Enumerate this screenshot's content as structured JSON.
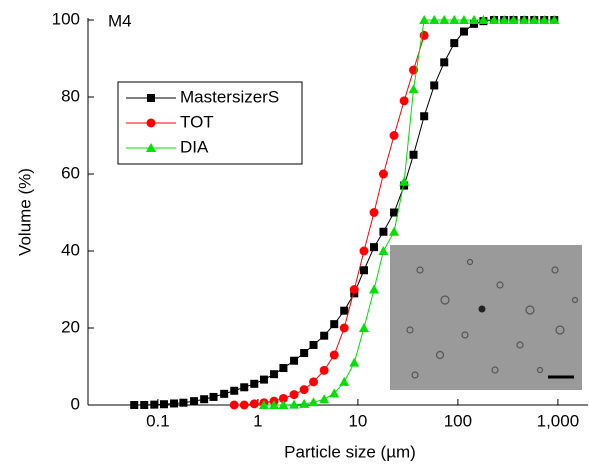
{
  "chart_data": {
    "type": "line",
    "annotation": "M4",
    "xlabel": "Particle size (µm)",
    "ylabel": "Volume (%)",
    "xscale": "log",
    "xlim": [
      0.02,
      2000
    ],
    "ylim": [
      0,
      100
    ],
    "xticks": [
      0.1,
      1,
      10,
      100,
      {
        "value": 1000,
        "label": "1,000"
      }
    ],
    "yticks": [
      0,
      20,
      40,
      60,
      80,
      100
    ],
    "legend": "upper left",
    "series": [
      {
        "name": "MastersizerS",
        "color": "#000000",
        "marker": "square",
        "x": [
          0.058,
          0.073,
          0.092,
          0.115,
          0.145,
          0.18,
          0.23,
          0.29,
          0.36,
          0.46,
          0.58,
          0.73,
          0.92,
          1.15,
          1.45,
          1.8,
          2.3,
          2.9,
          3.6,
          4.6,
          5.8,
          7.3,
          9.2,
          11.5,
          14.5,
          18,
          23,
          29,
          36,
          46,
          58,
          73,
          92,
          115,
          145,
          180,
          230,
          290,
          360,
          460,
          580,
          730,
          920
        ],
        "values": [
          0,
          0,
          0.1,
          0.2,
          0.4,
          0.6,
          1.0,
          1.5,
          2.1,
          2.9,
          3.7,
          4.6,
          5.5,
          6.6,
          8,
          9.6,
          11.5,
          13.5,
          15.6,
          18,
          21,
          24.5,
          29,
          35,
          41,
          45,
          50,
          57,
          65,
          75,
          83,
          89,
          94,
          97,
          99,
          99.7,
          100,
          100,
          100,
          100,
          100,
          100,
          100
        ]
      },
      {
        "name": "TOT",
        "color": "#ff0000",
        "marker": "circle",
        "x": [
          0.58,
          0.73,
          0.92,
          1.15,
          1.45,
          1.8,
          2.3,
          2.9,
          3.6,
          4.6,
          5.8,
          7.3,
          9.2,
          11.5,
          14.5,
          18,
          23,
          29,
          36,
          46
        ],
        "values": [
          0,
          0,
          0.3,
          0.6,
          1,
          1.7,
          2.7,
          4,
          6,
          9,
          13,
          20,
          30,
          40,
          50,
          60,
          70,
          79,
          87,
          96
        ]
      },
      {
        "name": "DIA",
        "color": "#00e000",
        "marker": "triangle",
        "x": [
          1.15,
          1.45,
          1.8,
          2.3,
          2.9,
          3.6,
          4.6,
          5.8,
          7.3,
          9.2,
          11.5,
          14.5,
          18,
          23,
          29,
          36,
          46,
          58,
          73,
          92,
          115,
          145,
          180,
          230,
          290,
          360,
          460,
          580,
          730,
          920
        ],
        "values": [
          0,
          0,
          0,
          0.1,
          0.3,
          0.7,
          1.5,
          3,
          6,
          11,
          20,
          30,
          40,
          45,
          58,
          82,
          100,
          100,
          100,
          100,
          100,
          100,
          100,
          100,
          100,
          100,
          100,
          100,
          100,
          100
        ]
      }
    ]
  }
}
